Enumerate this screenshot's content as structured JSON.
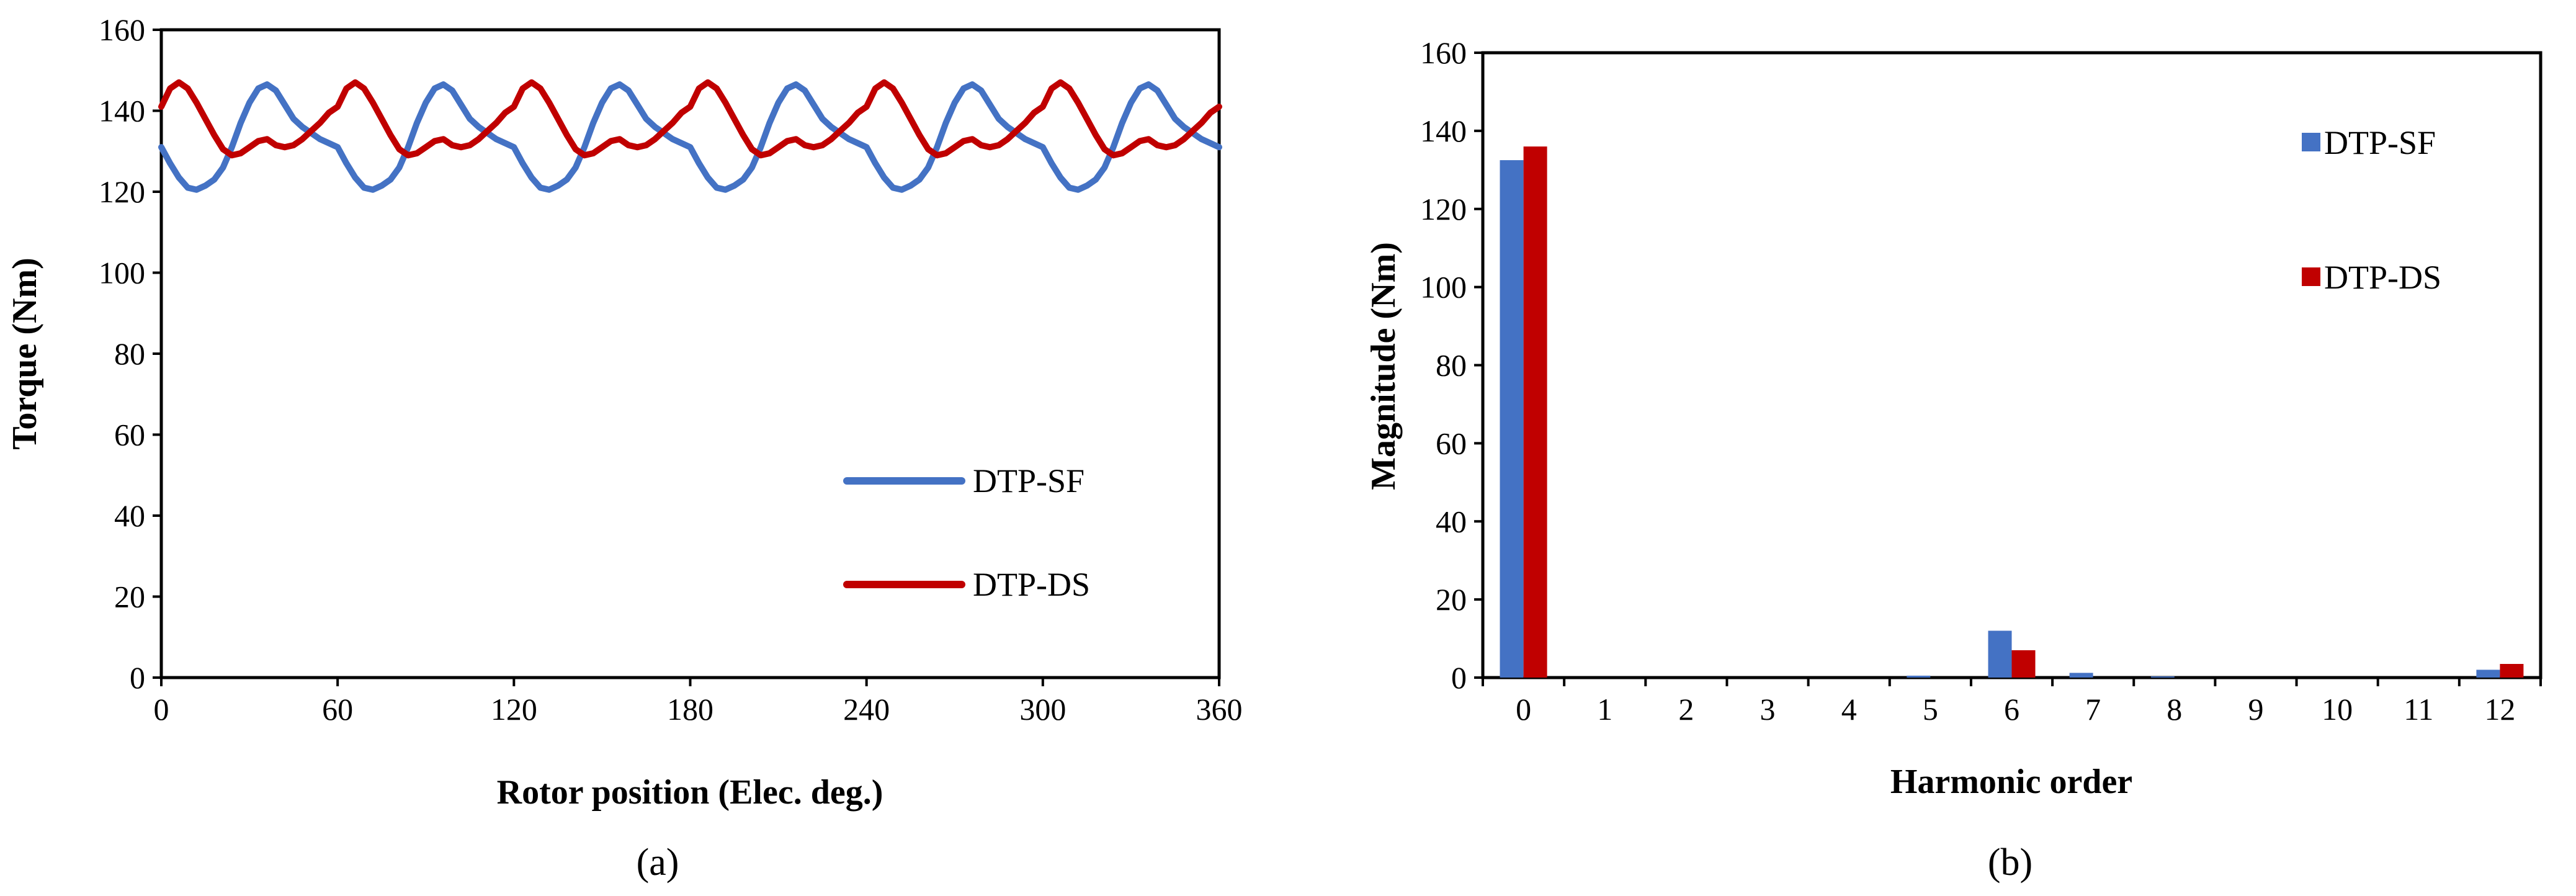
{
  "chart_data": [
    {
      "id": "a",
      "type": "line",
      "caption": "(a)",
      "xlabel": "Rotor position (Elec. deg.)",
      "ylabel": "Torque (Nm)",
      "xlim": [
        0,
        360
      ],
      "ylim": [
        0,
        160
      ],
      "xticks": [
        0,
        60,
        120,
        180,
        240,
        300,
        360
      ],
      "yticks": [
        0,
        20,
        40,
        60,
        80,
        100,
        120,
        140,
        160
      ],
      "grid": false,
      "legend_position": "right",
      "series": [
        {
          "name": "DTP-SF",
          "color": "#4472C4",
          "x": [
            0,
            3,
            6,
            9,
            12,
            15,
            18,
            21,
            24,
            27,
            30,
            33,
            36,
            39,
            42,
            45,
            48,
            51,
            54,
            57,
            60
          ],
          "y": [
            131,
            127,
            123.5,
            121,
            120.5,
            121.5,
            123,
            126,
            131,
            137,
            142,
            145.5,
            146.5,
            145,
            141.5,
            138,
            136,
            134.5,
            133,
            132,
            131
          ]
        },
        {
          "name": "DTP-DS",
          "color": "#C00000",
          "x": [
            0,
            3,
            6,
            9,
            12,
            15,
            18,
            21,
            24,
            27,
            30,
            33,
            36,
            39,
            42,
            45,
            48,
            51,
            54,
            57,
            60
          ],
          "y": [
            141,
            145.5,
            147,
            145.5,
            142,
            138,
            134,
            130.5,
            129,
            129.5,
            131,
            132.5,
            133,
            131.5,
            131,
            131.5,
            133,
            135,
            137,
            139.5,
            141
          ]
        }
      ]
    },
    {
      "id": "b",
      "type": "bar",
      "caption": "(b)",
      "xlabel": "Harmonic order",
      "ylabel": "Magnitude (Nm)",
      "ylim": [
        0,
        160
      ],
      "yticks": [
        0,
        20,
        40,
        60,
        80,
        100,
        120,
        140,
        160
      ],
      "grid": false,
      "legend_position": "top-right",
      "categories": [
        "0",
        "1",
        "2",
        "3",
        "4",
        "5",
        "6",
        "7",
        "8",
        "9",
        "10",
        "11",
        "12"
      ],
      "series": [
        {
          "name": "DTP-SF",
          "color": "#4472C4",
          "values": [
            132.5,
            0,
            0,
            0,
            0,
            0.5,
            12,
            1.2,
            0.3,
            0,
            0,
            0,
            2
          ]
        },
        {
          "name": "DTP-DS",
          "color": "#C00000",
          "values": [
            136,
            0,
            0,
            0,
            0,
            0,
            7,
            0,
            0,
            0,
            0,
            0,
            3.5
          ]
        }
      ]
    }
  ]
}
